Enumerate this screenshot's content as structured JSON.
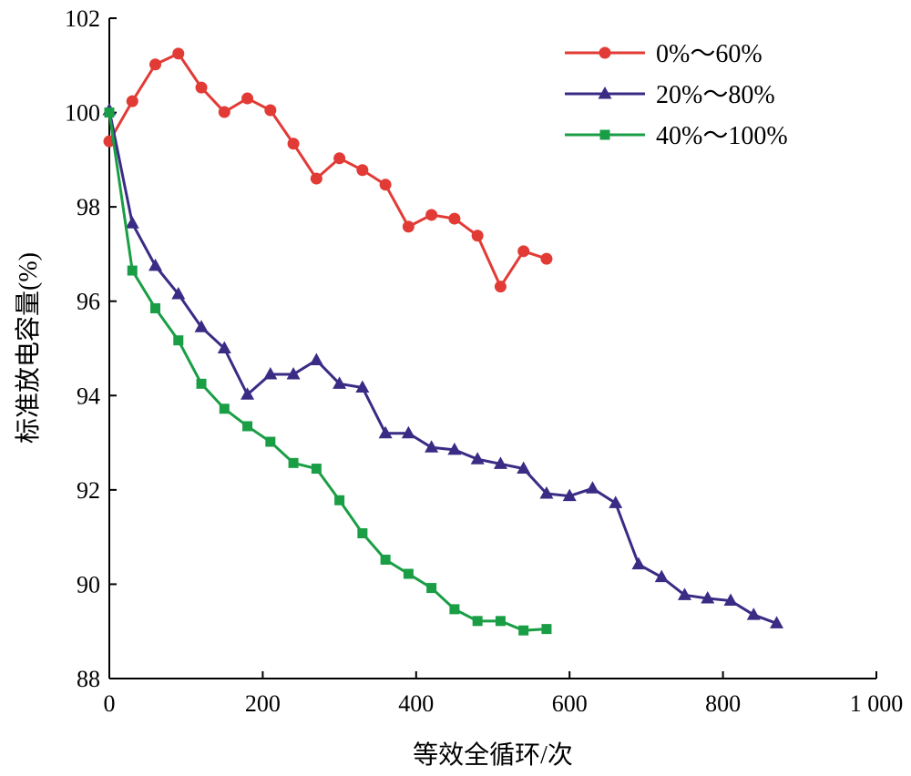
{
  "chart_data": {
    "type": "line",
    "title": "",
    "xlabel": "等效全循环/次",
    "ylabel": "标准放电容量(%)",
    "xlim": [
      0,
      1000
    ],
    "ylim": [
      88,
      102
    ],
    "xticks": [
      0,
      200,
      400,
      600,
      800,
      1000
    ],
    "xtick_labels": [
      "0",
      "200",
      "400",
      "600",
      "800",
      "1 000"
    ],
    "yticks": [
      88,
      90,
      92,
      94,
      96,
      98,
      100,
      102
    ],
    "ytick_labels": [
      "88",
      "90",
      "92",
      "94",
      "96",
      "98",
      "100",
      "102"
    ],
    "grid": false,
    "legend_position": "top-right",
    "series": [
      {
        "name": "0%～60%",
        "color": "#e23b36",
        "marker": "circle",
        "x": [
          0,
          30,
          60,
          90,
          120,
          150,
          180,
          210,
          240,
          270,
          300,
          330,
          360,
          390,
          420,
          450,
          480,
          510,
          540,
          570
        ],
        "y": [
          99.39,
          100.24,
          101.02,
          101.25,
          100.53,
          100.01,
          100.3,
          100.05,
          99.34,
          98.6,
          99.03,
          98.78,
          98.47,
          97.58,
          97.83,
          97.75,
          97.39,
          96.31,
          97.06,
          96.9
        ]
      },
      {
        "name": "20%～80%",
        "color": "#3a2c85",
        "marker": "triangle",
        "x": [
          0,
          30,
          60,
          90,
          120,
          150,
          180,
          210,
          240,
          270,
          300,
          330,
          360,
          390,
          420,
          450,
          480,
          510,
          540,
          570,
          600,
          630,
          660,
          690,
          720,
          750,
          780,
          810,
          840,
          870
        ],
        "y": [
          100.05,
          97.65,
          96.75,
          96.15,
          95.45,
          95.0,
          94.02,
          94.45,
          94.45,
          94.75,
          94.25,
          94.17,
          93.2,
          93.2,
          92.9,
          92.85,
          92.65,
          92.55,
          92.45,
          91.92,
          91.87,
          92.03,
          91.72,
          90.42,
          90.15,
          89.77,
          89.7,
          89.65,
          89.35,
          89.17
        ]
      },
      {
        "name": "40%～100%",
        "color": "#1a9e45",
        "marker": "square",
        "x": [
          0,
          30,
          60,
          90,
          120,
          150,
          180,
          210,
          240,
          270,
          300,
          330,
          360,
          390,
          420,
          450,
          480,
          510,
          540,
          570
        ],
        "y": [
          100.0,
          96.65,
          95.85,
          95.17,
          94.25,
          93.72,
          93.35,
          93.02,
          92.57,
          92.45,
          91.78,
          91.08,
          90.52,
          90.22,
          89.92,
          89.47,
          89.22,
          89.22,
          89.02,
          89.05
        ]
      }
    ]
  }
}
